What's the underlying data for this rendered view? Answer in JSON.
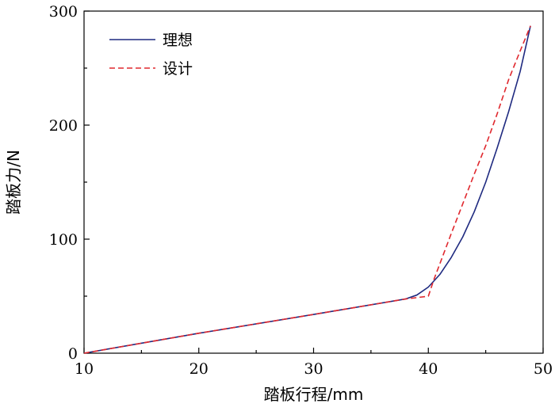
{
  "chart_data": {
    "type": "line",
    "xlabel": "踏板行程/mm",
    "ylabel": "踏板力/N",
    "xlim": [
      10,
      50
    ],
    "ylim": [
      0,
      300
    ],
    "xticks": [
      10,
      20,
      30,
      40,
      50
    ],
    "yticks": [
      0,
      100,
      200,
      300
    ],
    "grid": false,
    "legend_position": "top-left",
    "series": [
      {
        "name": "理想",
        "color": "#1f2a80",
        "style": "solid",
        "points": [
          [
            10,
            0
          ],
          [
            20,
            17.5
          ],
          [
            30,
            34
          ],
          [
            38,
            47.5
          ],
          [
            39,
            51
          ],
          [
            40,
            58
          ],
          [
            41,
            69
          ],
          [
            42,
            84
          ],
          [
            43,
            102
          ],
          [
            44,
            124
          ],
          [
            45,
            150
          ],
          [
            46,
            180
          ],
          [
            47,
            212
          ],
          [
            48,
            247
          ],
          [
            48.9,
            287
          ]
        ]
      },
      {
        "name": "设计",
        "color": "#e0282e",
        "style": "dashed",
        "points": [
          [
            10,
            0
          ],
          [
            20,
            17.5
          ],
          [
            30,
            34
          ],
          [
            38,
            47.5
          ],
          [
            40,
            50
          ],
          [
            40.5,
            65
          ],
          [
            42,
            105
          ],
          [
            44,
            157
          ],
          [
            45,
            182
          ],
          [
            46,
            210
          ],
          [
            47,
            240
          ],
          [
            48,
            265
          ],
          [
            48.9,
            287
          ]
        ]
      }
    ]
  }
}
